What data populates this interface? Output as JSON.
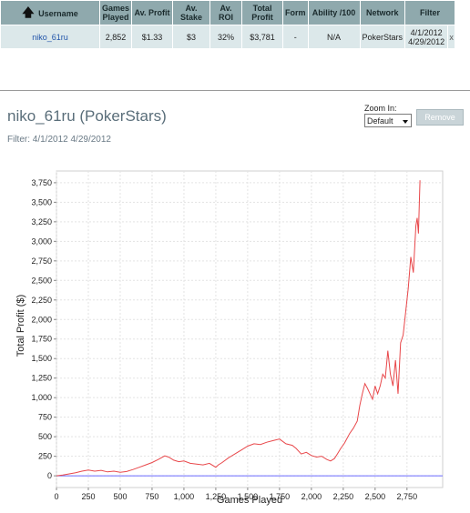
{
  "table": {
    "headers": [
      "Username",
      "Games Played",
      "Av. Profit",
      "Av. Stake",
      "Av. ROI",
      "Total Profit",
      "Form",
      "Ability /100",
      "Network",
      "Filter"
    ],
    "sort_icon": "sort-up-arrow-icon",
    "row": {
      "username": "niko_61ru",
      "games_played": "2,852",
      "av_profit": "$1.33",
      "av_stake": "$3",
      "av_roi": "32%",
      "total_profit": "$3,781",
      "form": "-",
      "ability": "N/A",
      "network": "PokerStars",
      "filter_start": "4/1/2012",
      "filter_end": "4/29/2012",
      "close": "x"
    }
  },
  "header": {
    "title": "niko_61ru (PokerStars)",
    "filter_text": "Filter: 4/1/2012 4/29/2012",
    "zoom_label": "Zoom In:",
    "zoom_value": "Default",
    "remove_label": "Remove"
  },
  "chart_data": {
    "type": "line",
    "xlabel": "Games Played",
    "ylabel": "Total Profit ($)",
    "xlim": [
      0,
      3030
    ],
    "ylim": [
      -150,
      3900
    ],
    "x_ticks": [
      0,
      250,
      500,
      750,
      1000,
      1250,
      1500,
      1750,
      2000,
      2250,
      2500,
      2750
    ],
    "x_tick_labels": [
      "0",
      "250",
      "500",
      "750",
      "1,000",
      "1,250",
      "1,500",
      "1,750",
      "2,000",
      "2,250",
      "2,500",
      "2,750"
    ],
    "y_ticks": [
      0,
      250,
      500,
      750,
      1000,
      1250,
      1500,
      1750,
      2000,
      2250,
      2500,
      2750,
      3000,
      3250,
      3500,
      3750
    ],
    "y_tick_labels": [
      "0",
      "250",
      "500",
      "750",
      "1,000",
      "1,250",
      "1,500",
      "1,750",
      "2,000",
      "2,250",
      "2,500",
      "2,750",
      "3,000",
      "3,250",
      "3,500",
      "3,750"
    ],
    "grid": true,
    "line_color": "#e8474a",
    "zero_line_color": "#6a6aff",
    "series": [
      {
        "x": [
          0,
          50,
          100,
          150,
          200,
          250,
          300,
          350,
          400,
          450,
          500,
          550,
          600,
          650,
          700,
          750,
          800,
          850,
          880,
          920,
          960,
          1000,
          1050,
          1100,
          1150,
          1200,
          1250,
          1270,
          1300,
          1350,
          1400,
          1450,
          1500,
          1550,
          1600,
          1650,
          1700,
          1750,
          1800,
          1850,
          1880,
          1920,
          1960,
          2000,
          2040,
          2080,
          2120,
          2150,
          2180,
          2200,
          2230,
          2260,
          2300,
          2330,
          2360,
          2380,
          2400,
          2420,
          2440,
          2460,
          2480,
          2500,
          2520,
          2540,
          2560,
          2580,
          2600,
          2620,
          2640,
          2660,
          2680,
          2700,
          2720,
          2740,
          2760,
          2780,
          2800,
          2820,
          2830,
          2840,
          2852
        ],
        "y": [
          0,
          10,
          25,
          40,
          60,
          75,
          60,
          70,
          50,
          60,
          45,
          55,
          80,
          110,
          140,
          170,
          210,
          255,
          240,
          200,
          180,
          190,
          160,
          150,
          140,
          160,
          110,
          140,
          170,
          230,
          280,
          330,
          380,
          410,
          400,
          430,
          450,
          470,
          410,
          390,
          350,
          280,
          300,
          260,
          240,
          250,
          210,
          190,
          220,
          270,
          350,
          420,
          540,
          610,
          700,
          900,
          1050,
          1180,
          1120,
          1050,
          980,
          1150,
          1050,
          1150,
          1300,
          1250,
          1600,
          1300,
          1150,
          1480,
          1050,
          1700,
          1800,
          2100,
          2400,
          2800,
          2600,
          3200,
          3300,
          3100,
          3781
        ]
      }
    ]
  }
}
